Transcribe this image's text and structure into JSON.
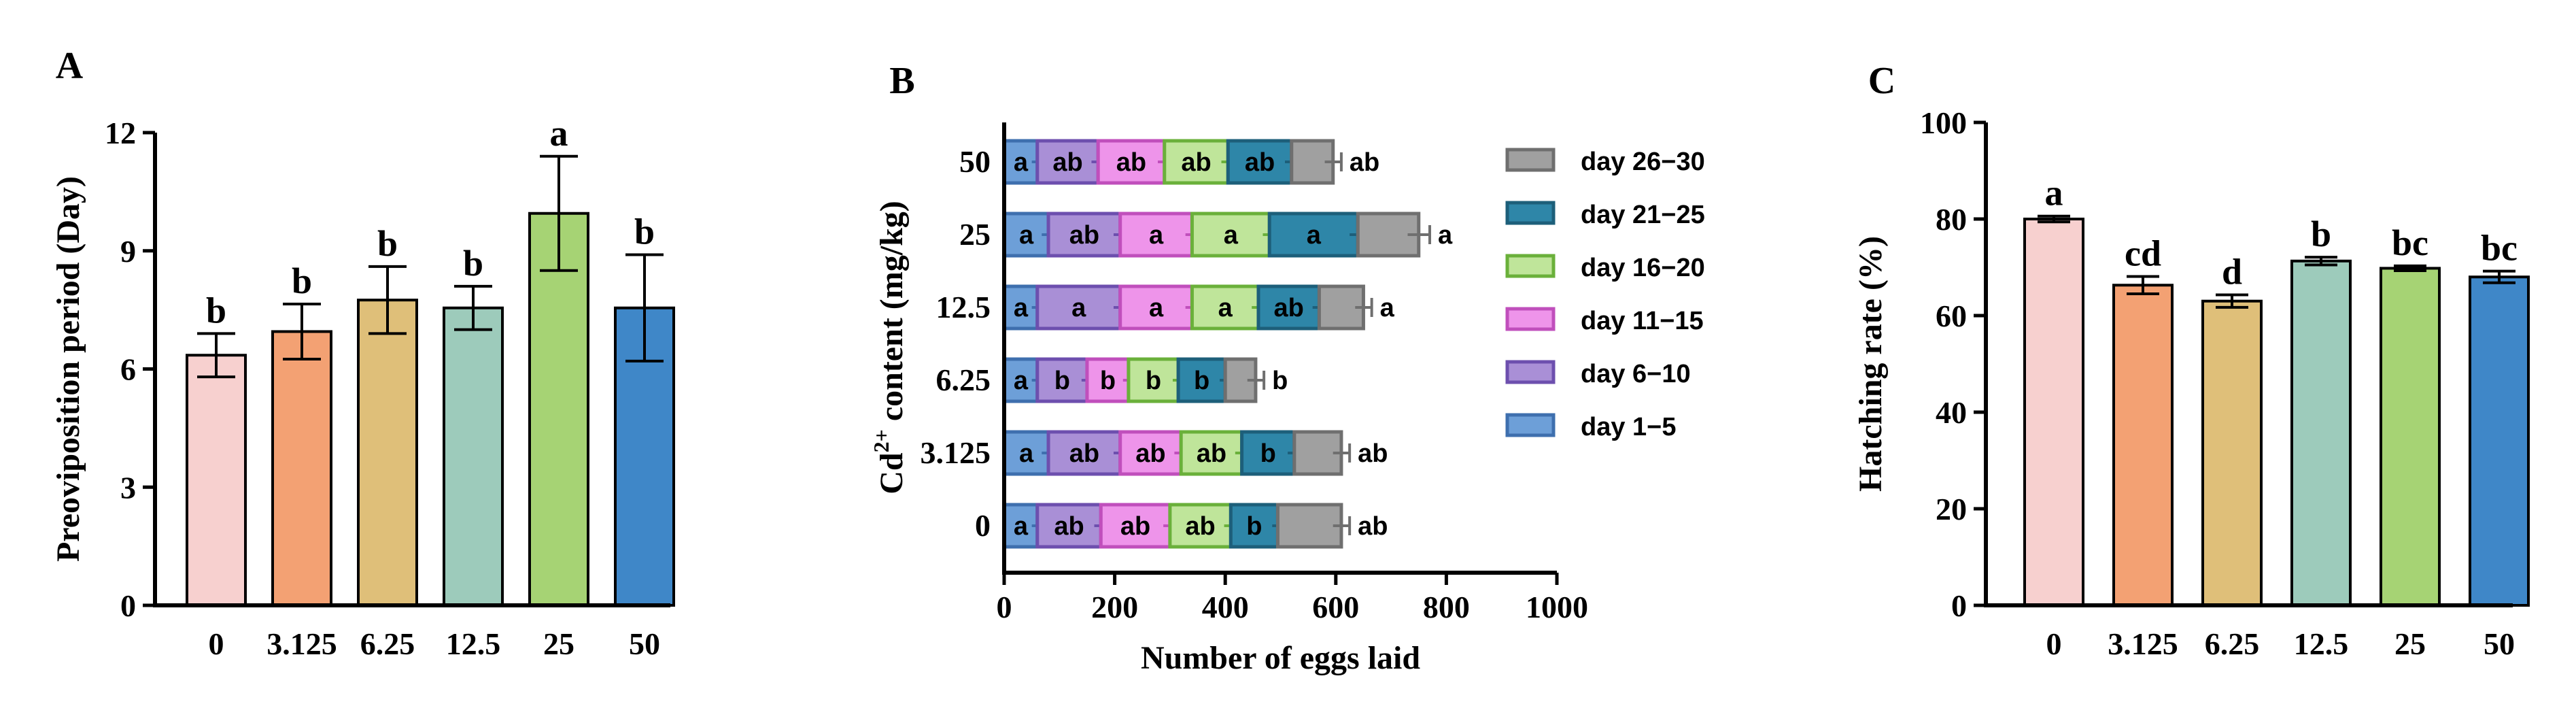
{
  "chart_data": [
    {
      "panel": "A",
      "type": "bar",
      "ylabel": "Preoviposition period (Day)",
      "xlabel": "",
      "ylim": [
        0,
        12
      ],
      "yticks": [
        0,
        3,
        6,
        9,
        12
      ],
      "categories": [
        "0",
        "3.125",
        "6.25",
        "12.5",
        "25",
        "50"
      ],
      "values": [
        6.35,
        6.95,
        7.75,
        7.55,
        9.95,
        7.55
      ],
      "errors": [
        0.55,
        0.7,
        0.85,
        0.55,
        1.45,
        1.35
      ],
      "significance": [
        "b",
        "b",
        "b",
        "b",
        "a",
        "b"
      ],
      "colors": [
        "#f7d0cf",
        "#f3a173",
        "#dfbf79",
        "#9dcbbb",
        "#a6d374",
        "#3f87c8"
      ]
    },
    {
      "panel": "B",
      "type": "bar",
      "orientation": "horizontal-stacked",
      "xlabel": "Number of eggs laid",
      "ylabel_main": "Cd",
      "ylabel_sup": "2+",
      "ylabel_rest": " content (mg/kg)",
      "xlim": [
        0,
        1000
      ],
      "xticks": [
        0,
        200,
        400,
        600,
        800,
        1000
      ],
      "categories": [
        "50",
        "25",
        "12.5",
        "6.25",
        "3.125",
        "0"
      ],
      "series": [
        {
          "name": "day 1−5",
          "color": "#6d9fd8",
          "edge": "#3e6fae",
          "values": [
            60,
            80,
            60,
            60,
            80,
            60
          ],
          "errors": [
            10,
            12,
            10,
            10,
            12,
            10
          ],
          "labels": [
            "a",
            "a",
            "a",
            "a",
            "a",
            "a"
          ]
        },
        {
          "name": "day 6−10",
          "color": "#a98fd6",
          "edge": "#6d4fae",
          "values": [
            110,
            130,
            150,
            90,
            130,
            115
          ],
          "errors": [
            12,
            12,
            12,
            10,
            12,
            12
          ],
          "labels": [
            "ab",
            "ab",
            "a",
            "b",
            "ab",
            "ab"
          ]
        },
        {
          "name": "day 11−15",
          "color": "#ee94ea",
          "edge": "#c04fbc",
          "values": [
            120,
            130,
            130,
            75,
            110,
            125
          ],
          "errors": [
            12,
            12,
            12,
            10,
            12,
            12
          ],
          "labels": [
            "ab",
            "a",
            "a",
            "b",
            "ab",
            "ab"
          ]
        },
        {
          "name": "day 16−20",
          "color": "#bfe59a",
          "edge": "#6ab03a",
          "values": [
            115,
            140,
            120,
            90,
            110,
            110
          ],
          "errors": [
            12,
            12,
            12,
            10,
            12,
            12
          ],
          "labels": [
            "ab",
            "a",
            "a",
            "b",
            "ab",
            "ab"
          ]
        },
        {
          "name": "day 21−25",
          "color": "#2e86a8",
          "edge": "#1d5f7a",
          "values": [
            115,
            160,
            110,
            85,
            95,
            85
          ],
          "errors": [
            12,
            15,
            12,
            10,
            12,
            10
          ],
          "labels": [
            "ab",
            "a",
            "ab",
            "b",
            "b",
            "b"
          ]
        },
        {
          "name": "day 26−30",
          "color": "#a0a0a0",
          "edge": "#6f6f6f",
          "values": [
            75,
            110,
            80,
            55,
            85,
            115
          ],
          "errors": [
            15,
            20,
            15,
            15,
            15,
            15
          ],
          "labels": [
            "ab",
            "a",
            "a",
            "b",
            "ab",
            "ab"
          ]
        }
      ]
    },
    {
      "panel": "C",
      "type": "bar",
      "ylabel": "Hatching rate (%)",
      "xlabel": "",
      "ylim": [
        0,
        100
      ],
      "yticks": [
        0,
        20,
        40,
        60,
        80,
        100
      ],
      "categories": [
        "0",
        "3.125",
        "6.25",
        "12.5",
        "25",
        "50"
      ],
      "values": [
        80,
        66.3,
        63,
        71.3,
        69.8,
        68
      ],
      "errors": [
        0.6,
        1.8,
        1.3,
        0.8,
        0.5,
        1.2
      ],
      "significance": [
        "a",
        "cd",
        "d",
        "b",
        "bc",
        "bc"
      ],
      "colors": [
        "#f7d0cf",
        "#f3a173",
        "#dfbf79",
        "#9dcbbb",
        "#a6d374",
        "#3f87c8"
      ]
    }
  ]
}
